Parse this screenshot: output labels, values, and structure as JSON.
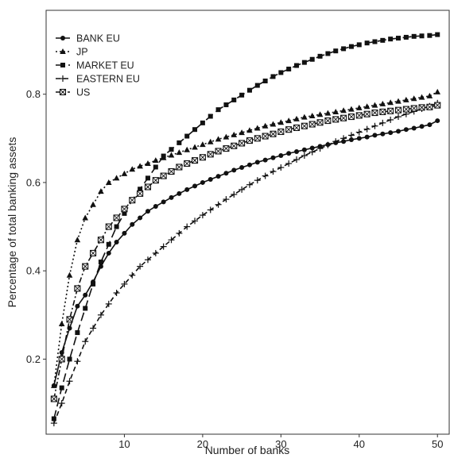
{
  "chart_data": {
    "type": "line",
    "title": "",
    "xlabel": "Number of banks",
    "ylabel": "Percentage of total banking assets",
    "xlim": [
      0,
      51.5
    ],
    "ylim": [
      0.03,
      0.99
    ],
    "xticks": [
      10,
      20,
      30,
      40,
      50
    ],
    "yticks": [
      0.2,
      0.4,
      0.6,
      0.8
    ],
    "grid": false,
    "legend_position": "top-left",
    "x": [
      1,
      2,
      3,
      4,
      5,
      6,
      7,
      8,
      9,
      10,
      11,
      12,
      13,
      14,
      15,
      16,
      17,
      18,
      19,
      20,
      21,
      22,
      23,
      24,
      25,
      26,
      27,
      28,
      29,
      30,
      31,
      32,
      33,
      34,
      35,
      36,
      37,
      38,
      39,
      40,
      41,
      42,
      43,
      44,
      45,
      46,
      47,
      48,
      49,
      50
    ],
    "series": [
      {
        "name": "BANK EU",
        "marker": "circle",
        "dash": "solid",
        "values": [
          0.14,
          0.215,
          0.27,
          0.32,
          0.345,
          0.375,
          0.41,
          0.44,
          0.465,
          0.485,
          0.505,
          0.52,
          0.535,
          0.546,
          0.556,
          0.566,
          0.575,
          0.584,
          0.592,
          0.6,
          0.607,
          0.614,
          0.621,
          0.628,
          0.634,
          0.64,
          0.646,
          0.651,
          0.656,
          0.661,
          0.666,
          0.67,
          0.674,
          0.678,
          0.682,
          0.686,
          0.69,
          0.693,
          0.697,
          0.7,
          0.703,
          0.707,
          0.71,
          0.713,
          0.716,
          0.72,
          0.723,
          0.727,
          0.731,
          0.74
        ]
      },
      {
        "name": "JP",
        "marker": "triangle",
        "dash": "dotted",
        "values": [
          0.14,
          0.28,
          0.39,
          0.47,
          0.52,
          0.55,
          0.58,
          0.6,
          0.61,
          0.62,
          0.63,
          0.637,
          0.643,
          0.65,
          0.656,
          0.662,
          0.668,
          0.674,
          0.68,
          0.686,
          0.692,
          0.698,
          0.703,
          0.708,
          0.713,
          0.718,
          0.723,
          0.728,
          0.732,
          0.736,
          0.74,
          0.744,
          0.748,
          0.751,
          0.754,
          0.757,
          0.76,
          0.763,
          0.766,
          0.769,
          0.772,
          0.775,
          0.778,
          0.781,
          0.784,
          0.787,
          0.79,
          0.793,
          0.796,
          0.805
        ]
      },
      {
        "name": "MARKET EU",
        "marker": "square",
        "dash": "longdash",
        "values": [
          0.065,
          0.135,
          0.2,
          0.26,
          0.315,
          0.37,
          0.42,
          0.46,
          0.5,
          0.53,
          0.56,
          0.585,
          0.61,
          0.635,
          0.66,
          0.675,
          0.69,
          0.705,
          0.72,
          0.735,
          0.75,
          0.765,
          0.776,
          0.787,
          0.798,
          0.809,
          0.82,
          0.83,
          0.84,
          0.849,
          0.857,
          0.865,
          0.872,
          0.879,
          0.886,
          0.892,
          0.898,
          0.903,
          0.908,
          0.912,
          0.916,
          0.919,
          0.922,
          0.925,
          0.927,
          0.929,
          0.931,
          0.932,
          0.933,
          0.935
        ]
      },
      {
        "name": "EASTERN EU",
        "marker": "plus",
        "dash": "dashed",
        "values": [
          0.055,
          0.1,
          0.15,
          0.195,
          0.24,
          0.27,
          0.3,
          0.325,
          0.35,
          0.37,
          0.39,
          0.41,
          0.425,
          0.44,
          0.455,
          0.47,
          0.485,
          0.5,
          0.513,
          0.526,
          0.538,
          0.55,
          0.562,
          0.573,
          0.584,
          0.595,
          0.605,
          0.615,
          0.625,
          0.634,
          0.643,
          0.652,
          0.661,
          0.669,
          0.677,
          0.685,
          0.693,
          0.7,
          0.707,
          0.714,
          0.721,
          0.728,
          0.735,
          0.742,
          0.749,
          0.755,
          0.761,
          0.767,
          0.773,
          0.78
        ]
      },
      {
        "name": "US",
        "marker": "boxed-square",
        "dash": "dashdot",
        "values": [
          0.11,
          0.2,
          0.29,
          0.36,
          0.41,
          0.44,
          0.47,
          0.5,
          0.52,
          0.54,
          0.56,
          0.575,
          0.59,
          0.605,
          0.615,
          0.625,
          0.635,
          0.643,
          0.65,
          0.657,
          0.664,
          0.671,
          0.677,
          0.683,
          0.689,
          0.695,
          0.7,
          0.705,
          0.71,
          0.715,
          0.72,
          0.724,
          0.728,
          0.732,
          0.736,
          0.74,
          0.743,
          0.746,
          0.749,
          0.752,
          0.755,
          0.758,
          0.76,
          0.762,
          0.764,
          0.766,
          0.768,
          0.77,
          0.771,
          0.775
        ]
      }
    ]
  }
}
